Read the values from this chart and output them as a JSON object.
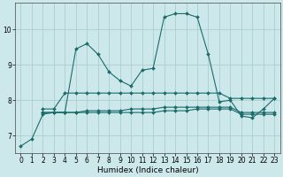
{
  "xlabel": "Humidex (Indice chaleur)",
  "background_color": "#cde8ea",
  "grid_color": "#aacfcf",
  "line_color": "#1a6b6b",
  "xlim": [
    -0.5,
    23.5
  ],
  "ylim": [
    6.5,
    10.75
  ],
  "yticks": [
    7,
    8,
    9,
    10
  ],
  "xticks": [
    0,
    1,
    2,
    3,
    4,
    5,
    6,
    7,
    8,
    9,
    10,
    11,
    12,
    13,
    14,
    15,
    16,
    17,
    18,
    19,
    20,
    21,
    22,
    23
  ],
  "series": [
    {
      "x": [
        0,
        1,
        2,
        3,
        4,
        5,
        6,
        7,
        8,
        9,
        10,
        11,
        12,
        13,
        14,
        15,
        16,
        17,
        18,
        19,
        20,
        21,
        22,
        23
      ],
      "y": [
        6.7,
        6.9,
        7.6,
        7.65,
        7.65,
        9.45,
        9.6,
        9.3,
        8.8,
        8.55,
        8.4,
        8.85,
        8.9,
        10.35,
        10.45,
        10.45,
        10.35,
        9.3,
        7.95,
        8.0,
        7.55,
        7.5,
        7.75,
        8.05
      ]
    },
    {
      "x": [
        2,
        3,
        4,
        5,
        6,
        7,
        8,
        9,
        10,
        11,
        12,
        13,
        14,
        15,
        16,
        17,
        18,
        19,
        20,
        21,
        22,
        23
      ],
      "y": [
        7.75,
        7.75,
        8.2,
        8.2,
        8.2,
        8.2,
        8.2,
        8.2,
        8.2,
        8.2,
        8.2,
        8.2,
        8.2,
        8.2,
        8.2,
        8.2,
        8.2,
        8.05,
        8.05,
        8.05,
        8.05,
        8.05
      ]
    },
    {
      "x": [
        2,
        3,
        4,
        5,
        6,
        7,
        8,
        9,
        10,
        11,
        12,
        13,
        14,
        15,
        16,
        17,
        18,
        19,
        20,
        21,
        22,
        23
      ],
      "y": [
        7.65,
        7.65,
        7.65,
        7.65,
        7.65,
        7.65,
        7.65,
        7.65,
        7.65,
        7.65,
        7.65,
        7.7,
        7.7,
        7.7,
        7.75,
        7.75,
        7.75,
        7.75,
        7.6,
        7.6,
        7.6,
        7.6
      ]
    },
    {
      "x": [
        2,
        3,
        4,
        5,
        6,
        7,
        8,
        9,
        10,
        11,
        12,
        13,
        14,
        15,
        16,
        17,
        18,
        19,
        20,
        21,
        22,
        23
      ],
      "y": [
        7.65,
        7.65,
        7.65,
        7.65,
        7.7,
        7.7,
        7.7,
        7.7,
        7.75,
        7.75,
        7.75,
        7.8,
        7.8,
        7.8,
        7.8,
        7.8,
        7.8,
        7.8,
        7.65,
        7.65,
        7.65,
        7.65
      ]
    }
  ],
  "marker": "D",
  "markersize": 2.0,
  "linewidth": 0.8,
  "tick_fontsize": 5.5,
  "xlabel_fontsize": 6.5
}
